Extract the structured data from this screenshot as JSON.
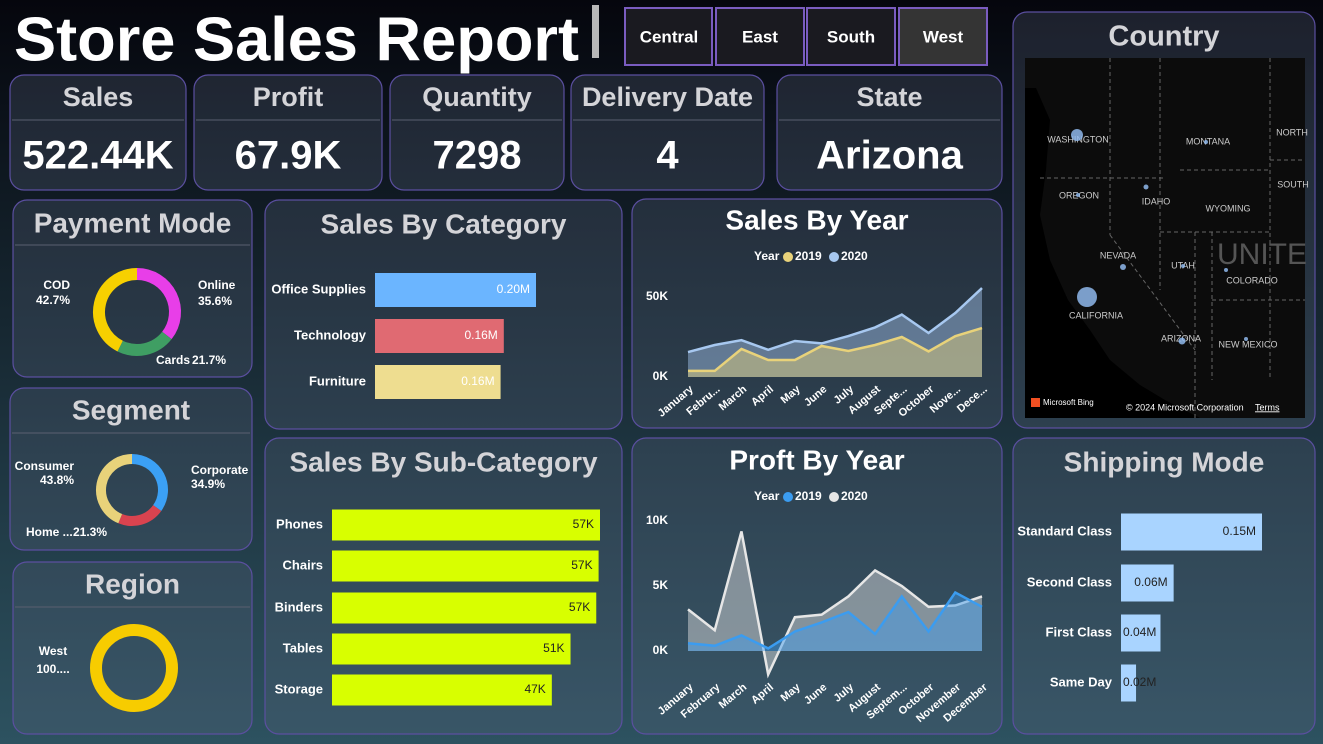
{
  "title": "Store Sales Report",
  "filters": [
    "Central",
    "East",
    "South",
    "West"
  ],
  "kpis": [
    {
      "label": "Sales",
      "value": "522.44K"
    },
    {
      "label": "Profit",
      "value": "67.9K"
    },
    {
      "label": "Quantity",
      "value": 7298
    },
    {
      "label": "Delivery Date",
      "value": 4
    },
    {
      "label": "State",
      "value": "Arizona"
    }
  ],
  "map": {
    "title": "Country",
    "labels": [
      "WASHINGTON",
      "MONTANA",
      "NORTH",
      "OREGON",
      "IDAHO",
      "WYOMING",
      "SOUTH",
      "NEVADA",
      "UNITE",
      "UTAH",
      "COLORADO",
      "CALIFORNIA",
      "ARIZONA",
      "NEW MEXICO"
    ],
    "attribution": [
      "Microsoft Bing",
      "© 2024 Microsoft Corporation",
      "Terms"
    ]
  },
  "chart_data": [
    {
      "type": "donut",
      "title": "Payment Mode",
      "categories": [
        "Online",
        "Cards",
        "COD"
      ],
      "values": [
        35.6,
        21.7,
        42.7
      ],
      "value_labels": [
        "35.6%",
        "21.7%",
        "42.7%"
      ],
      "colors": [
        "#e83ee8",
        "#3f9e63",
        "#f7d000"
      ]
    },
    {
      "type": "donut",
      "title": "Segment",
      "categories": [
        "Corporate",
        "Home ...",
        "Consumer"
      ],
      "values": [
        34.9,
        21.3,
        43.8
      ],
      "value_labels": [
        "34.9%",
        "21.3%",
        "43.8%"
      ],
      "colors": [
        "#3ba0f5",
        "#d9434f",
        "#e8d27a"
      ]
    },
    {
      "type": "donut",
      "title": "Region",
      "categories": [
        "West"
      ],
      "values": [
        100
      ],
      "value_labels": [
        "100...."
      ],
      "colors": [
        "#f7cc00"
      ]
    },
    {
      "type": "bar",
      "title": "Sales By Category",
      "categories": [
        "Office Supplies",
        "Technology",
        "Furniture"
      ],
      "values": [
        0.2,
        0.16,
        0.156
      ],
      "value_labels": [
        "0.20M",
        "0.16M",
        "0.16M"
      ],
      "colors": [
        "#6bb5ff",
        "#e06a72",
        "#eedd90"
      ]
    },
    {
      "type": "bar",
      "title": "Sales By Sub-Category",
      "categories": [
        "Phones",
        "Chairs",
        "Binders",
        "Tables",
        "Storage"
      ],
      "values": [
        57.3,
        57,
        56.5,
        51,
        47
      ],
      "value_labels": [
        "57K",
        "57K",
        "57K",
        "51K",
        "47K"
      ],
      "colors": [
        "#d8ff00",
        "#d8ff00",
        "#d8ff00",
        "#d8ff00",
        "#d8ff00"
      ]
    },
    {
      "type": "area",
      "title": "Sales By Year",
      "legend_title": "Year",
      "categories": [
        "January",
        "Febru...",
        "March",
        "April",
        "May",
        "June",
        "July",
        "August",
        "Septe...",
        "October",
        "Nove...",
        "Dece..."
      ],
      "series": [
        {
          "name": "2019",
          "color": "#e8d27a",
          "values": [
            3800,
            3800,
            17500,
            10600,
            10600,
            19400,
            16300,
            20000,
            25000,
            16000,
            25500,
            30600
          ]
        },
        {
          "name": "2020",
          "color": "#a7c8f0",
          "values": [
            15600,
            20000,
            23000,
            17000,
            22500,
            21000,
            25600,
            31000,
            39000,
            27500,
            40000,
            55600
          ]
        }
      ],
      "ylim": [
        0,
        60000
      ],
      "yticks": [
        {
          "value": 0,
          "label": "0K"
        },
        {
          "value": 50000,
          "label": "50K"
        }
      ]
    },
    {
      "type": "area",
      "title": "Proft By Year",
      "legend_title": "Year",
      "categories": [
        "January",
        "February",
        "March",
        "April",
        "May",
        "June",
        "July",
        "August",
        "Septem...",
        "October",
        "November",
        "December"
      ],
      "series": [
        {
          "name": "2019",
          "color": "#3b9cf0",
          "values": [
            600,
            400,
            1200,
            200,
            1500,
            2200,
            3000,
            1300,
            4200,
            1500,
            4500,
            3400
          ]
        },
        {
          "name": "2020",
          "color": "#e6e6e6",
          "values": [
            3200,
            1600,
            9200,
            -1800,
            2600,
            2800,
            4200,
            6200,
            5000,
            3400,
            3500,
            4200
          ]
        }
      ],
      "ylim": [
        -2000,
        11000
      ],
      "yticks": [
        {
          "value": 0,
          "label": "0K"
        },
        {
          "value": 5000,
          "label": "5K"
        },
        {
          "value": 10000,
          "label": "10K"
        }
      ]
    },
    {
      "type": "bar",
      "title": "Shipping Mode",
      "categories": [
        "Standard Class",
        "Second Class",
        "First Class",
        "Same Day"
      ],
      "values": [
        0.15,
        0.056,
        0.042,
        0.016
      ],
      "value_labels": [
        "0.15M",
        "0.06M",
        "0.04M",
        "0.02M"
      ],
      "colors": [
        "#a9d4ff",
        "#a9d4ff",
        "#a9d4ff",
        "#a9d4ff"
      ]
    }
  ]
}
